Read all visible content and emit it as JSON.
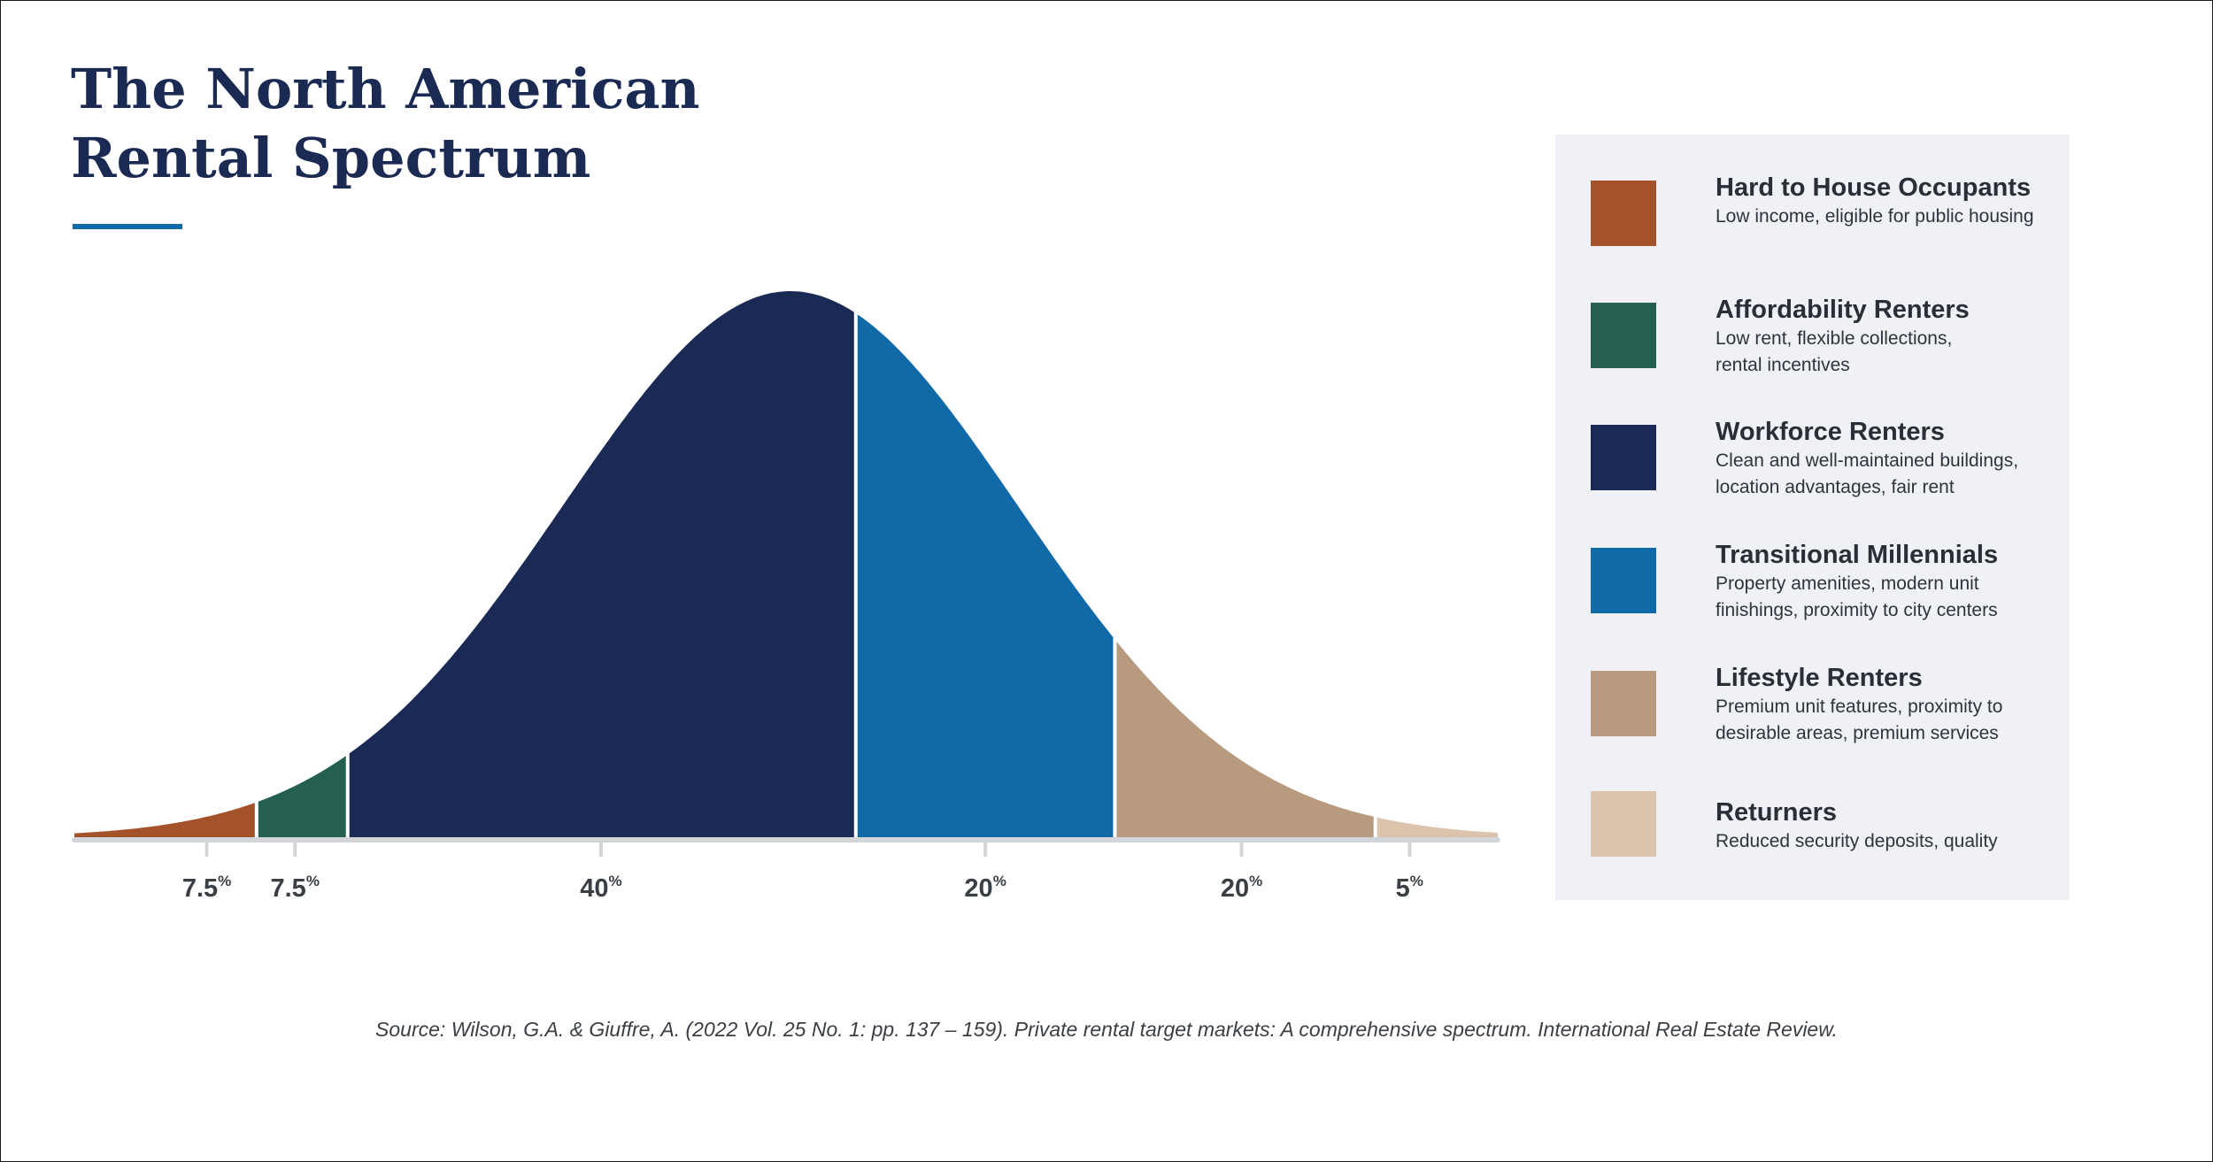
{
  "title": {
    "line1": "The North American",
    "line2": "Rental Spectrum"
  },
  "colors": {
    "title": "#1b2a52",
    "accent_rule": "#1069a8",
    "axis": "#d3d6d8",
    "legend_bg": "#f0f1f6"
  },
  "chart_data": {
    "type": "area",
    "title": "The North American Rental Spectrum",
    "description_of_shape": "normal distribution curve divided into six segments",
    "xlabel": "",
    "ylabel": "",
    "segments": [
      {
        "name": "Hard to House Occupants",
        "percent_label": "7.5",
        "value": 7.5,
        "color": "#a4522a",
        "boundary_end": 0.128
      },
      {
        "name": "Affordability Renters",
        "percent_label": "7.5",
        "value": 7.5,
        "color": "#255f51",
        "boundary_end": 0.192
      },
      {
        "name": "Workforce Renters",
        "percent_label": "40",
        "value": 40,
        "color": "#1b2a55",
        "boundary_end": 0.549
      },
      {
        "name": "Transitional Millennials",
        "percent_label": "20",
        "value": 20,
        "color": "#106aa8",
        "boundary_end": 0.731
      },
      {
        "name": "Lifestyle Renters",
        "percent_label": "20",
        "value": 20,
        "color": "#b89a7f",
        "boundary_end": 0.914
      },
      {
        "name": "Returners",
        "percent_label": "5",
        "value": 5,
        "color": "#dcc3ab",
        "boundary_end": 1.0
      }
    ],
    "tick_markers": [
      0.093,
      0.155,
      0.37,
      0.64,
      0.82,
      0.938
    ],
    "curve_peak": 0.503,
    "percent_symbol": "%",
    "legend_position": "right"
  },
  "legend": {
    "items": [
      {
        "title": "Hard to House Occupants",
        "desc_line1": "Low income, eligible for public housing",
        "desc_line2": "",
        "color": "#a4522a"
      },
      {
        "title": "Affordability Renters",
        "desc_line1": "Low rent, flexible collections,",
        "desc_line2": "rental incentives",
        "color": "#255f51"
      },
      {
        "title": "Workforce Renters",
        "desc_line1": "Clean and well-maintained buildings,",
        "desc_line2": "location advantages, fair rent",
        "color": "#1b2a55"
      },
      {
        "title": "Transitional Millennials",
        "desc_line1": "Property amenities, modern unit",
        "desc_line2": "finishings, proximity to city centers",
        "color": "#106aa8"
      },
      {
        "title": "Lifestyle Renters",
        "desc_line1": "Premium unit features, proximity to",
        "desc_line2": "desirable areas, premium services",
        "color": "#b89a7f"
      },
      {
        "title": "Returners",
        "desc_line1": "Reduced security deposits, quality",
        "desc_line2": "",
        "color": "#dcc3ab"
      }
    ]
  },
  "source": "Source: Wilson, G.A. & Giuffre, A. (2022 Vol. 25 No. 1: pp. 137 – 159). Private rental target markets: A comprehensive spectrum. International Real Estate Review."
}
